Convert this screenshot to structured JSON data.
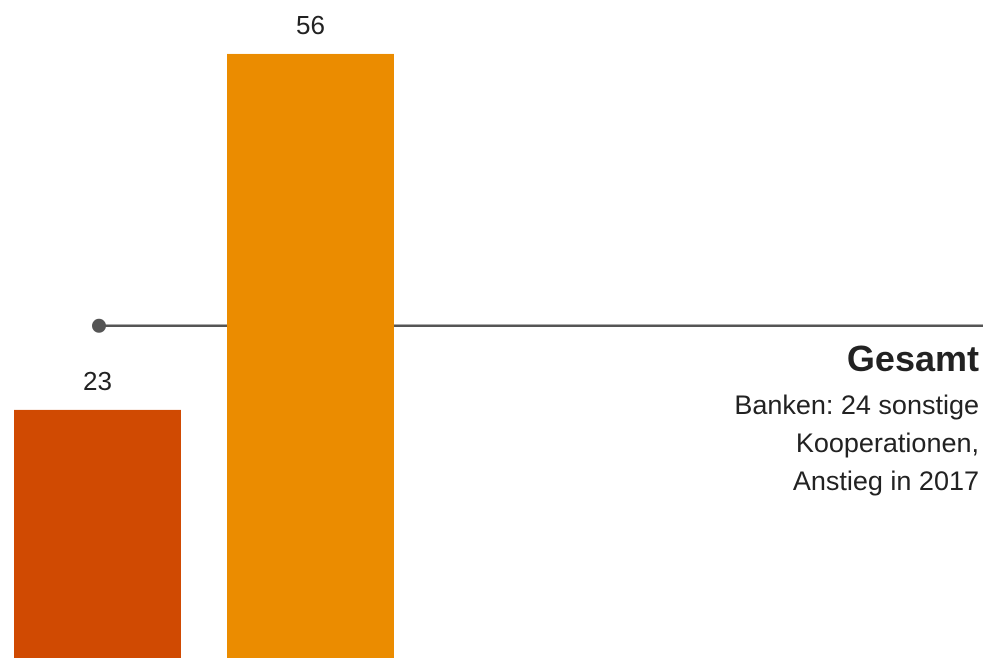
{
  "chart_data": {
    "type": "bar",
    "categories": [
      "",
      ""
    ],
    "values": [
      23,
      56
    ],
    "data_labels": [
      "23",
      "56"
    ],
    "colors": [
      "#d04a02",
      "#eb8c00"
    ],
    "reference_line_value": 30.8,
    "reference_line_color": "#555555",
    "ylim": [
      0,
      61
    ],
    "grid": false,
    "annotation": {
      "title": "Gesamt",
      "lines": [
        "Banken: 24 sonstige",
        "Kooperationen,",
        "Anstieg in 2017"
      ]
    }
  }
}
